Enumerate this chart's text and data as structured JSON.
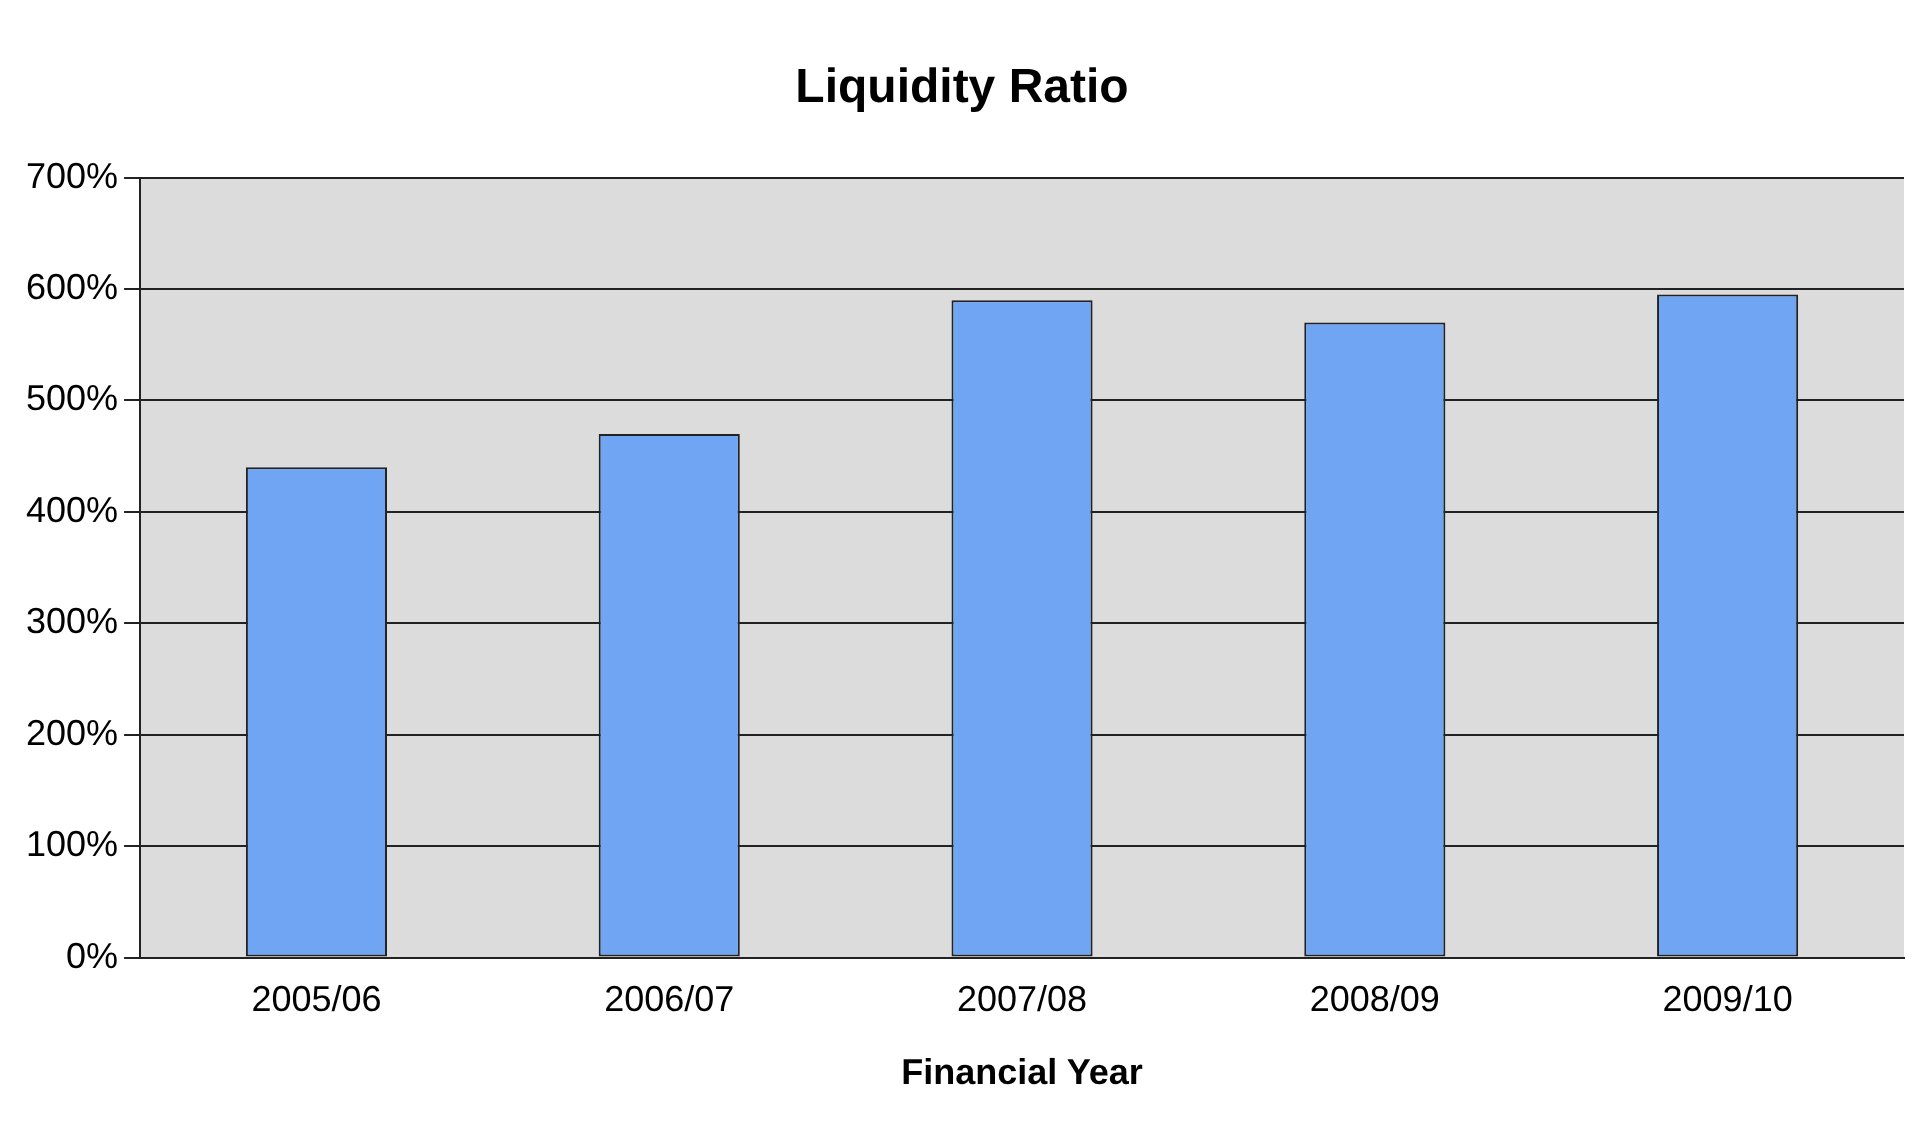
{
  "chart_data": {
    "type": "bar",
    "title": "Liquidity Ratio",
    "xlabel": "Financial Year",
    "categories": [
      "2005/06",
      "2006/07",
      "2007/08",
      "2008/09",
      "2009/10"
    ],
    "values": [
      440,
      470,
      590,
      570,
      595
    ],
    "color": "#6fa5f2",
    "ylim": [
      0,
      700
    ],
    "yticks": [
      {
        "value": 0,
        "label": "0%"
      },
      {
        "value": 100,
        "label": "100%"
      },
      {
        "value": 200,
        "label": "200%"
      },
      {
        "value": 300,
        "label": "300%"
      },
      {
        "value": 400,
        "label": "400%"
      },
      {
        "value": 500,
        "label": "500%"
      },
      {
        "value": 600,
        "label": "600%"
      },
      {
        "value": 700,
        "label": "700%"
      }
    ],
    "grid": "y",
    "legend": false
  }
}
